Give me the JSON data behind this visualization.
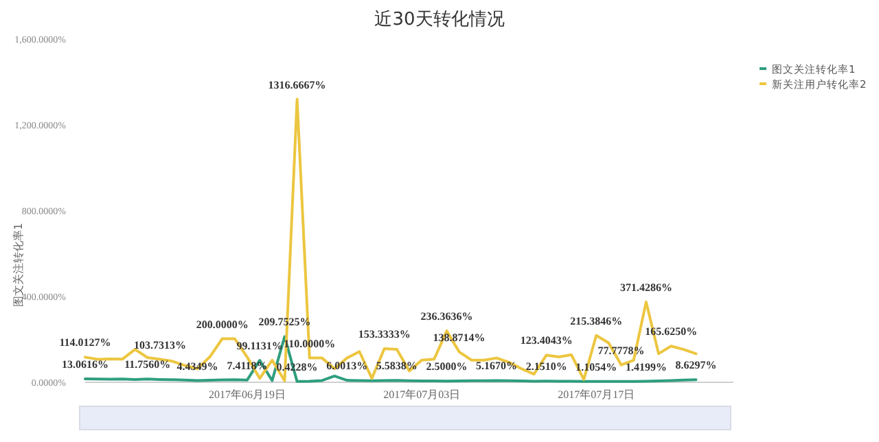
{
  "chart_data": {
    "type": "line",
    "title": "近30天转化情况",
    "ylabel": "图文关注转化率1",
    "x": [
      "2017-06-06",
      "2017-06-07",
      "2017-06-08",
      "2017-06-09",
      "2017-06-10",
      "2017-06-11",
      "2017-06-12",
      "2017-06-13",
      "2017-06-14",
      "2017-06-15",
      "2017-06-16",
      "2017-06-17",
      "2017-06-18",
      "2017-06-19",
      "2017-06-20",
      "2017-06-21",
      "2017-06-22",
      "2017-06-23",
      "2017-06-24",
      "2017-06-25",
      "2017-06-26",
      "2017-06-27",
      "2017-06-28",
      "2017-06-29",
      "2017-06-30",
      "2017-07-01",
      "2017-07-02",
      "2017-07-03",
      "2017-07-04",
      "2017-07-05",
      "2017-07-06",
      "2017-07-07",
      "2017-07-08",
      "2017-07-09",
      "2017-07-10",
      "2017-07-11",
      "2017-07-12",
      "2017-07-13",
      "2017-07-14",
      "2017-07-15",
      "2017-07-16",
      "2017-07-17",
      "2017-07-18",
      "2017-07-19",
      "2017-07-20",
      "2017-07-21",
      "2017-07-22",
      "2017-07-23",
      "2017-07-24",
      "2017-07-25"
    ],
    "series": [
      {
        "name": "图文关注转化率1",
        "color": "#2e9e7e",
        "values": [
          13.0616,
          12,
          11,
          12,
          10,
          11.756,
          10,
          9,
          7,
          4.4349,
          6,
          8,
          9,
          7.4118,
          99.1131,
          5,
          209.7525,
          0.4228,
          2,
          5,
          26,
          6.0013,
          5,
          4,
          5,
          5.5838,
          4,
          3,
          3,
          2.5,
          3,
          4,
          4,
          5.167,
          4,
          3,
          2,
          2.151,
          2,
          2,
          1,
          1.1054,
          1,
          1,
          1,
          1.4199,
          3,
          5,
          7,
          8.6297
        ],
        "value_labels": [
          "13.0616%",
          null,
          null,
          null,
          null,
          "11.7560%",
          null,
          null,
          null,
          "4.4349%",
          null,
          null,
          null,
          "7.4118%",
          "99.1131%",
          null,
          "209.7525%",
          "0.4228%",
          null,
          null,
          null,
          "6.0013%",
          null,
          null,
          null,
          "5.5838%",
          null,
          null,
          null,
          "2.5000%",
          null,
          null,
          null,
          "5.1670%",
          null,
          null,
          null,
          "2.1510%",
          null,
          null,
          null,
          "1.1054%",
          null,
          null,
          null,
          "1.4199%",
          null,
          null,
          null,
          "8.6297%"
        ]
      },
      {
        "name": "新关注用户转化率2",
        "color": "#ecc640",
        "values": [
          114.0127,
          104,
          106,
          105,
          150,
          112,
          103.7313,
          95,
          75,
          60,
          115,
          200,
          200,
          114,
          15,
          100,
          4,
          1316.6667,
          110,
          110,
          60,
          110,
          140,
          15,
          153.3333,
          150,
          50,
          100,
          105,
          236.3636,
          138.8714,
          100,
          100,
          110,
          90,
          60,
          35,
          123.4043,
          115,
          125,
          10,
          215.3846,
          180,
          77.7778,
          100,
          371.4286,
          130,
          165.625,
          150,
          130
        ],
        "value_labels": [
          "114.0127%",
          null,
          null,
          null,
          null,
          null,
          "103.7313%",
          null,
          null,
          null,
          null,
          "200.0000%",
          null,
          null,
          null,
          null,
          null,
          "1316.6667%",
          "110.0000%",
          null,
          null,
          null,
          null,
          null,
          "153.3333%",
          null,
          null,
          null,
          null,
          "236.3636%",
          "138.8714%",
          null,
          null,
          null,
          null,
          null,
          null,
          "123.4043%",
          null,
          null,
          null,
          "215.3846%",
          null,
          "77.7778%",
          null,
          "371.4286%",
          null,
          "165.6250%",
          null,
          null
        ]
      }
    ],
    "xlim": [
      "2017-06-06",
      "2017-07-28"
    ],
    "xticks": [
      {
        "value": "2017-06-19",
        "label": "2017年06月19日"
      },
      {
        "value": "2017-07-03",
        "label": "2017年07月03日"
      },
      {
        "value": "2017-07-17",
        "label": "2017年07月17日"
      }
    ],
    "ylim": [
      0,
      1600
    ],
    "yticks": [
      {
        "value": 0,
        "label": "0.0000%"
      },
      {
        "value": 400,
        "label": "400.0000%"
      },
      {
        "value": 800,
        "label": "800.0000%"
      },
      {
        "value": 1200,
        "label": "1,200.0000%"
      },
      {
        "value": 1600,
        "label": "1,600.0000%"
      }
    ],
    "legend": "top right",
    "marker": "none",
    "line_style": "solid"
  }
}
